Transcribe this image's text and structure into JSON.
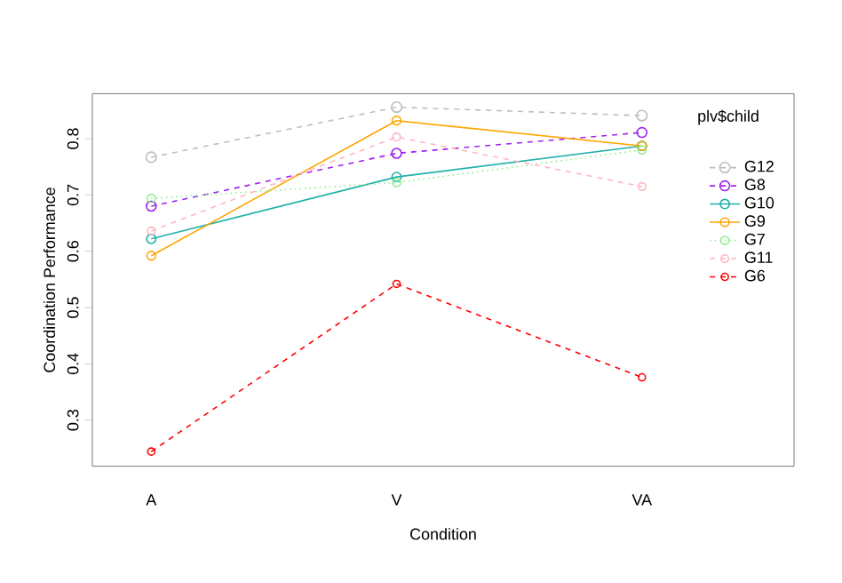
{
  "chart_data": {
    "type": "line",
    "xlabel": "Condition",
    "ylabel": "Coordination Performance",
    "legend_title": "plv$child",
    "legend": "top right",
    "marker": "circle",
    "grid": false,
    "categories": [
      "A",
      "V",
      "VA"
    ],
    "ylim": [
      0.218,
      0.88
    ],
    "yticks": [
      0.3,
      0.4,
      0.5,
      0.6,
      0.7,
      0.8
    ],
    "series": [
      {
        "name": "G12",
        "color": "#bebebe",
        "line_style": "dashed",
        "values": [
          0.767,
          0.856,
          0.841
        ]
      },
      {
        "name": "G8",
        "color": "#a020f0",
        "line_style": "dashed",
        "values": [
          0.68,
          0.774,
          0.811
        ]
      },
      {
        "name": "G10",
        "color": "#20b2aa",
        "line_style": "solid",
        "values": [
          0.622,
          0.732,
          0.787
        ]
      },
      {
        "name": "G9",
        "color": "#ffa500",
        "line_style": "solid",
        "values": [
          0.592,
          0.832,
          0.787
        ]
      },
      {
        "name": "G7",
        "color": "#90ee90",
        "line_style": "dotted",
        "values": [
          0.694,
          0.722,
          0.78
        ]
      },
      {
        "name": "G11",
        "color": "#ffb6c1",
        "line_style": "dashed",
        "values": [
          0.636,
          0.803,
          0.715
        ]
      },
      {
        "name": "G6",
        "color": "#ff0000",
        "line_style": "dashed",
        "values": [
          0.244,
          0.542,
          0.376
        ]
      }
    ]
  }
}
